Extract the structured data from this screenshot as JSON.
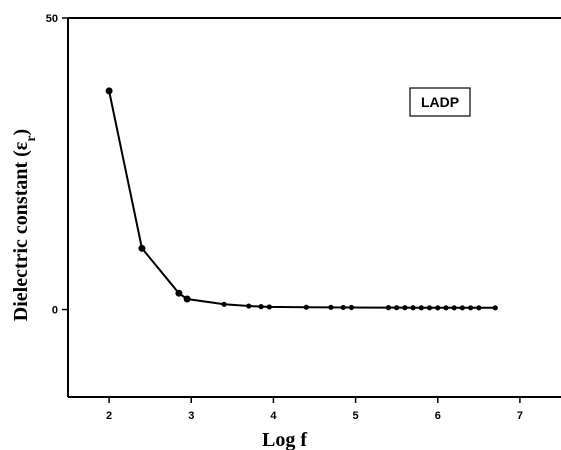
{
  "chart_data": {
    "type": "line",
    "title": "",
    "xlabel": "Log f",
    "ylabel": "Dielectric constant (ε",
    "ylabel_sub": "r",
    "ylabel_close": ")",
    "xlim": [
      1.5,
      7.5
    ],
    "ylim": [
      -15,
      50
    ],
    "xticks": [
      2,
      3,
      4,
      5,
      6,
      7
    ],
    "yticks": [
      0,
      50
    ],
    "xtick_labels": [
      "2",
      "3",
      "4",
      "5",
      "6",
      "7"
    ],
    "ytick_labels": [
      "0",
      "50"
    ],
    "grid": false,
    "legend_position": "top-right",
    "series": [
      {
        "name": "LADP",
        "color": "#000000",
        "x": [
          2.0,
          2.4,
          2.85,
          2.95,
          3.4,
          3.7,
          3.85,
          3.95,
          4.4,
          4.7,
          4.85,
          4.95,
          5.4,
          5.5,
          5.6,
          5.7,
          5.8,
          5.9,
          6.0,
          6.1,
          6.2,
          6.3,
          6.4,
          6.5,
          6.7
        ],
        "y": [
          37.5,
          10.5,
          2.8,
          1.8,
          0.9,
          0.6,
          0.5,
          0.45,
          0.4,
          0.38,
          0.36,
          0.35,
          0.33,
          0.32,
          0.32,
          0.31,
          0.31,
          0.3,
          0.3,
          0.3,
          0.3,
          0.3,
          0.3,
          0.3,
          0.3
        ]
      }
    ]
  }
}
